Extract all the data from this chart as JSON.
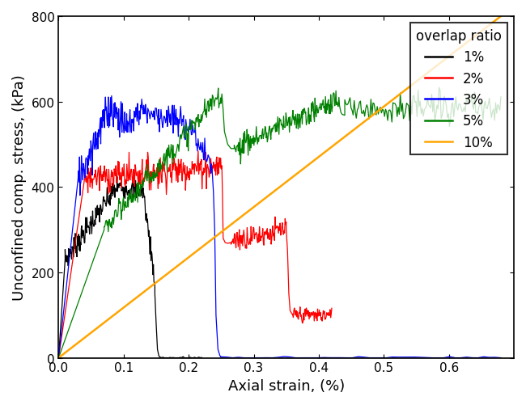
{
  "xlabel": "Axial strain, (%)",
  "ylabel": "Unconfined comp. stress, (kPa)",
  "xlim": [
    0,
    0.7
  ],
  "ylim": [
    0,
    800
  ],
  "xticks": [
    0,
    0.1,
    0.2,
    0.3,
    0.4,
    0.5,
    0.6
  ],
  "yticks": [
    0,
    200,
    400,
    600,
    800
  ],
  "legend_title": "overlap ratio",
  "legend_labels": [
    "1%",
    "2%",
    "3%",
    "5%",
    "10%"
  ],
  "colors": [
    "black",
    "red",
    "blue",
    "green",
    "orange"
  ],
  "figsize": [
    6.5,
    5.02
  ],
  "dpi": 100
}
